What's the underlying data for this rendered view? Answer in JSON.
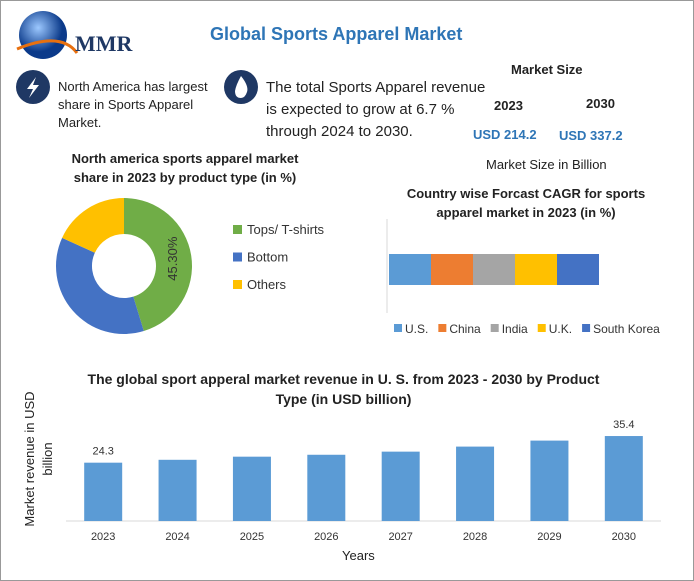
{
  "header": {
    "logo": "MMR",
    "title": "Global Sports Apparel Market"
  },
  "facts": [
    "North America has largest share in Sports Apparel Market.",
    "The total Sports Apparel revenue is expected to grow at 6.7 % through 2024 to 2030."
  ],
  "market_size": {
    "title": "Market Size",
    "years": [
      "2023",
      "2030"
    ],
    "values": [
      "USD 214.2",
      "USD 337.2"
    ],
    "note": "Market Size in Billion"
  },
  "chart_data": [
    {
      "type": "donut",
      "title": "North america sports apparel market share in 2023 by product type (in %)",
      "categories": [
        "Tops/ T-shirts",
        "Bottom",
        "Others"
      ],
      "values": [
        45.3,
        36.5,
        18.2
      ],
      "value_labels": [
        "45.30%",
        null,
        null
      ],
      "colors": [
        "#70ad47",
        "#4472c4",
        "#ffc000"
      ]
    },
    {
      "type": "stacked_hbar",
      "title": "Country wise Forcast CAGR for sports apparel market in 2023 (in %)",
      "series": [
        {
          "name": "U.S.",
          "color": "#5b9bd5",
          "values": [
            20
          ]
        },
        {
          "name": "China",
          "color": "#ed7d31",
          "values": [
            20
          ]
        },
        {
          "name": "India",
          "color": "#a5a5a5",
          "values": [
            20
          ]
        },
        {
          "name": "U.K.",
          "color": "#ffc000",
          "values": [
            20
          ]
        },
        {
          "name": "South Korea",
          "color": "#4472c4",
          "values": [
            20
          ]
        }
      ],
      "xlim": [
        0,
        100
      ]
    },
    {
      "type": "bar",
      "title": "The global sport apperal market revenue in U. S. from 2023 - 2030  by Product Type (in USD billion)",
      "x_label": "Years",
      "y_label": "Market revenue in USD billion",
      "categories": [
        "2023",
        "2024",
        "2025",
        "2026",
        "2027",
        "2028",
        "2029",
        "2030"
      ],
      "values": [
        24.3,
        25.5,
        26.8,
        27.6,
        28.9,
        31.0,
        33.5,
        35.4
      ],
      "value_labels": [
        "24.3",
        null,
        null,
        null,
        null,
        null,
        null,
        "35.4"
      ],
      "color": "#5b9bd5",
      "ylim": [
        0,
        40
      ]
    }
  ]
}
